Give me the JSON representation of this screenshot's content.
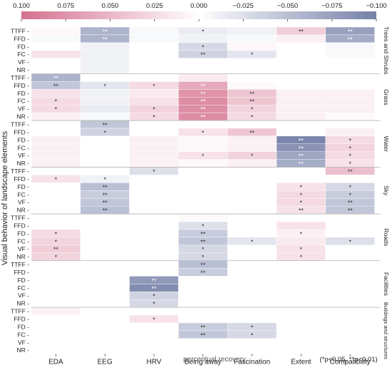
{
  "chart_data": {
    "type": "heatmap",
    "title": "",
    "ylabel": "Visual behavior of landscape elements",
    "xlabel": "perceptual recovery",
    "note": "(*p<0.05, **p<0.01)",
    "colorbar": {
      "ticks": [
        "0.100",
        "0.075",
        "0.050",
        "0.025",
        "0.000",
        "−0.025",
        "−0.050",
        "−0.075",
        "−0.100"
      ],
      "range": [
        0.1,
        -0.1
      ],
      "positive_color": "#d4708e",
      "negative_color": "#7580a8"
    },
    "columns": [
      "EDA",
      "EEG",
      "HRV",
      "Being away",
      "Fascination",
      "Extent",
      "Compatibility"
    ],
    "groups": [
      {
        "name": "Trees and Shrubs",
        "rows": [
          "TTFF",
          "FFD",
          "FD",
          "FC",
          "VF",
          "NR"
        ],
        "values": [
          [
            0.005,
            -0.06,
            -0.005,
            -0.015,
            -0.01,
            0.035,
            -0.075
          ],
          [
            -0.005,
            -0.06,
            -0.005,
            -0.01,
            -0.005,
            0.01,
            -0.065
          ],
          [
            0.0,
            -0.01,
            0.0,
            -0.03,
            0.005,
            0.0,
            -0.005
          ],
          [
            0.02,
            -0.01,
            0.0,
            -0.035,
            -0.02,
            0.0,
            -0.005
          ],
          [
            0.0,
            -0.01,
            0.0,
            0.0,
            0.0,
            0.0,
            0.0
          ],
          [
            0.0,
            -0.01,
            0.0,
            0.0,
            0.0,
            0.0,
            0.0
          ]
        ],
        "sig": [
          [
            "",
            "**",
            "",
            "*",
            "",
            "**",
            "**"
          ],
          [
            "",
            "**",
            "",
            "",
            "",
            "",
            "**"
          ],
          [
            "",
            "",
            "",
            "*",
            "",
            "",
            ""
          ],
          [
            "",
            "",
            "",
            "**",
            "*",
            "",
            ""
          ],
          [
            "",
            "",
            "",
            "",
            "",
            "",
            ""
          ],
          [
            "",
            "",
            "",
            "",
            "",
            "",
            ""
          ]
        ]
      },
      {
        "name": "Grass",
        "rows": [
          "TTFF",
          "FFD",
          "FD",
          "FC",
          "VF",
          "NR"
        ],
        "values": [
          [
            -0.06,
            0.0,
            0.0,
            0.015,
            0.0,
            0.0,
            0.0
          ],
          [
            -0.045,
            -0.02,
            0.025,
            0.06,
            0.005,
            0.0,
            0.0
          ],
          [
            0.02,
            -0.01,
            0.015,
            0.075,
            0.04,
            0.01,
            0.01
          ],
          [
            0.025,
            -0.01,
            0.02,
            0.08,
            0.04,
            0.01,
            0.01
          ],
          [
            0.025,
            -0.015,
            0.03,
            0.08,
            0.03,
            0.01,
            0.01
          ],
          [
            0.01,
            -0.005,
            0.025,
            0.08,
            0.025,
            0.01,
            0.005
          ]
        ],
        "sig": [
          [
            "**",
            "",
            "",
            "",
            "",
            "",
            ""
          ],
          [
            "**",
            "*",
            "*",
            "**",
            "",
            "",
            ""
          ],
          [
            "",
            "",
            "",
            "**",
            "**",
            "",
            ""
          ],
          [
            "*",
            "",
            "",
            "**",
            "**",
            "",
            ""
          ],
          [
            "*",
            "",
            "*",
            "**",
            "*",
            "",
            ""
          ],
          [
            "",
            "",
            "*",
            "**",
            "*",
            "",
            ""
          ]
        ]
      },
      {
        "name": "Water",
        "rows": [
          "TTFF",
          "FFD",
          "FD",
          "FC",
          "VF",
          "NR"
        ],
        "values": [
          [
            0.0,
            -0.045,
            0.0,
            0.0,
            0.0,
            0.0,
            0.0
          ],
          [
            0.0,
            -0.035,
            0.0,
            0.02,
            0.04,
            0.0,
            0.01
          ],
          [
            0.01,
            0.0,
            0.01,
            0.005,
            0.01,
            -0.095,
            0.025
          ],
          [
            0.01,
            0.0,
            0.01,
            0.005,
            0.01,
            -0.085,
            0.03
          ],
          [
            0.01,
            0.0,
            0.01,
            0.02,
            0.03,
            -0.07,
            0.025
          ],
          [
            0.01,
            0.0,
            0.01,
            0.005,
            0.01,
            -0.065,
            0.02
          ]
        ],
        "sig": [
          [
            "",
            "**",
            "",
            "",
            "",
            "",
            ""
          ],
          [
            "",
            "*",
            "",
            "*",
            "**",
            "",
            ""
          ],
          [
            "",
            "",
            "",
            "",
            "",
            "**",
            "*"
          ],
          [
            "",
            "",
            "",
            "",
            "",
            "**",
            "*"
          ],
          [
            "",
            "",
            "",
            "*",
            "*",
            "**",
            "*"
          ],
          [
            "",
            "",
            "",
            "",
            "",
            "**",
            "*"
          ]
        ]
      },
      {
        "name": "Sky",
        "rows": [
          "TTFF",
          "FFD",
          "FD",
          "FC",
          "VF",
          "NR"
        ],
        "values": [
          [
            0.0,
            0.0,
            -0.025,
            0.0,
            0.0,
            0.0,
            0.045
          ],
          [
            0.02,
            -0.01,
            0.0,
            0.0,
            0.0,
            0.0,
            0.0
          ],
          [
            0.0,
            -0.05,
            0.0,
            0.0,
            0.0,
            0.02,
            -0.03
          ],
          [
            0.0,
            -0.04,
            0.0,
            0.0,
            0.0,
            0.025,
            -0.04
          ],
          [
            0.0,
            -0.045,
            0.0,
            0.0,
            0.0,
            0.025,
            -0.045
          ],
          [
            0.0,
            -0.05,
            0.0,
            0.0,
            0.0,
            0.02,
            -0.045
          ]
        ],
        "sig": [
          [
            "",
            "",
            "*",
            "",
            "",
            "",
            "**"
          ],
          [
            "*",
            "*",
            "",
            "",
            "",
            "",
            ""
          ],
          [
            "",
            "**",
            "",
            "",
            "",
            "*",
            "*"
          ],
          [
            "",
            "**",
            "",
            "",
            "",
            "*",
            "*"
          ],
          [
            "",
            "**",
            "",
            "",
            "",
            "*",
            "**"
          ],
          [
            "",
            "**",
            "",
            "",
            "",
            "**",
            "**"
          ]
        ]
      },
      {
        "name": "Roads",
        "rows": [
          "TTFF",
          "FFD",
          "FD",
          "FC",
          "VF",
          "NR"
        ],
        "values": [
          [
            0.0,
            0.0,
            0.0,
            0.005,
            0.0,
            0.0,
            0.0
          ],
          [
            0.0,
            0.0,
            0.0,
            -0.025,
            0.0,
            0.02,
            0.0
          ],
          [
            0.025,
            0.0,
            0.0,
            -0.04,
            0.0,
            0.01,
            0.0
          ],
          [
            0.03,
            0.0,
            0.0,
            -0.045,
            -0.02,
            0.015,
            -0.025
          ],
          [
            0.035,
            0.0,
            0.0,
            -0.03,
            0.0,
            0.02,
            0.0
          ],
          [
            0.03,
            0.0,
            0.0,
            -0.03,
            0.0,
            0.02,
            0.0
          ]
        ],
        "sig": [
          [
            "",
            "",
            "",
            "",
            "",
            "",
            ""
          ],
          [
            "",
            "",
            "",
            "*",
            "",
            "",
            ""
          ],
          [
            "*",
            "",
            "",
            "**",
            "",
            "*",
            ""
          ],
          [
            "*",
            "",
            "",
            "**",
            "*",
            "",
            "*"
          ],
          [
            "**",
            "",
            "",
            "*",
            "",
            "*",
            ""
          ],
          [
            "*",
            "",
            "",
            "*",
            "",
            "*",
            ""
          ]
        ]
      },
      {
        "name": "Facilities",
        "rows": [
          "TTFF",
          "FFD",
          "FD",
          "FC",
          "VF",
          "NR"
        ],
        "values": [
          [
            0.0,
            0.0,
            0.0,
            -0.05,
            0.0,
            0.0,
            0.0
          ],
          [
            0.0,
            0.0,
            0.0,
            -0.04,
            0.0,
            0.0,
            0.0
          ],
          [
            0.0,
            0.0,
            -0.08,
            0.0,
            0.0,
            0.0,
            0.0
          ],
          [
            0.0,
            0.0,
            -0.09,
            0.0,
            0.0,
            0.0,
            0.0
          ],
          [
            0.0,
            0.0,
            -0.035,
            0.0,
            0.0,
            0.0,
            0.0
          ],
          [
            0.0,
            0.0,
            -0.03,
            0.0,
            0.0,
            0.0,
            0.0
          ]
        ],
        "sig": [
          [
            "",
            "",
            "",
            "**",
            "",
            "",
            ""
          ],
          [
            "",
            "",
            "",
            "**",
            "",
            "",
            ""
          ],
          [
            "",
            "",
            "**",
            "",
            "",
            "",
            ""
          ],
          [
            "",
            "",
            "**",
            "",
            "",
            "",
            ""
          ],
          [
            "",
            "",
            "*",
            "",
            "",
            "",
            ""
          ],
          [
            "",
            "",
            "*",
            "",
            "",
            "",
            ""
          ]
        ]
      },
      {
        "name": "Buildings and structures",
        "rows": [
          "TTFF",
          "FFD",
          "FD",
          "FC",
          "VF",
          "NR"
        ],
        "values": [
          [
            0.01,
            0.0,
            0.0,
            0.0,
            0.0,
            0.0,
            0.0
          ],
          [
            0.0,
            0.0,
            0.02,
            0.0,
            0.0,
            0.0,
            0.0
          ],
          [
            0.0,
            0.0,
            0.0,
            -0.04,
            -0.03,
            0.0,
            0.0
          ],
          [
            0.0,
            0.0,
            0.0,
            -0.045,
            -0.03,
            0.0,
            0.0
          ],
          [
            0.0,
            0.0,
            0.0,
            0.0,
            0.0,
            0.0,
            0.0
          ],
          [
            0.0,
            0.0,
            0.0,
            0.0,
            0.0,
            0.0,
            0.0
          ]
        ],
        "sig": [
          [
            "",
            "",
            "",
            "",
            "",
            "",
            ""
          ],
          [
            "",
            "",
            "*",
            "",
            "",
            "",
            ""
          ],
          [
            "",
            "",
            "",
            "**",
            "*",
            "",
            ""
          ],
          [
            "",
            "",
            "",
            "**",
            "*",
            "",
            ""
          ],
          [
            "",
            "",
            "",
            "",
            "",
            "",
            ""
          ],
          [
            "",
            "",
            "",
            "",
            "",
            "",
            ""
          ]
        ]
      }
    ]
  }
}
